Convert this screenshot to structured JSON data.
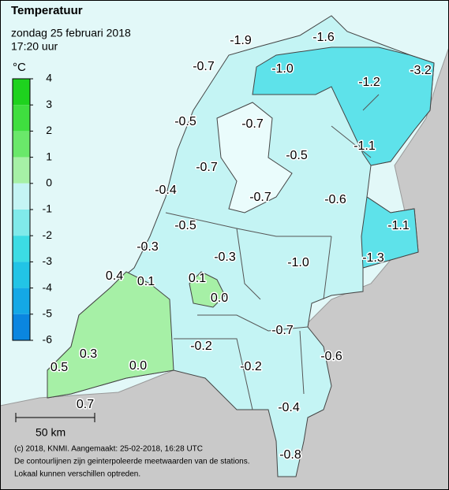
{
  "header": {
    "title": "Temperatuur",
    "date": "zondag 25 februari 2018",
    "time": "17:20 uur"
  },
  "legend": {
    "unit": "°C",
    "ticks": [
      4,
      3,
      2,
      1,
      0,
      -1,
      -2,
      -3,
      -4,
      -5,
      -6
    ],
    "colors": [
      "#1ed21e",
      "#3fde3f",
      "#6ae86a",
      "#a6f0a6",
      "#c4f4f4",
      "#80eaea",
      "#3cdce4",
      "#22c4e6",
      "#14a8e6",
      "#0a86e0"
    ]
  },
  "map": {
    "labels": [
      "-1.9",
      "-1.6",
      "-0.7",
      "-1.0",
      "-1.2",
      "-3.2",
      "-0.5",
      "-0.7",
      "-1.1",
      "-0.5",
      "-0.7",
      "-0.4",
      "-0.7",
      "-0.6",
      "-0.5",
      "-1.1",
      "-0.3",
      "-0.3",
      "-1.0",
      "-1.3",
      "0.4",
      "0.1",
      "0.1",
      "0.0",
      "-0.7",
      "-0.2",
      "-0.6",
      "0.3",
      "0.0",
      "-0.2",
      "0.5",
      "0.7",
      "-0.4",
      "-0.8"
    ]
  },
  "scale": "50 km",
  "footer": [
    "(c) 2018, KNMI. Aangemaakt: 25-02-2018, 16:28 UTC",
    "De contourlijnen zijn geinterpoleerde meetwaarden van de stations.",
    "Lokaal kunnen verschillen optreden."
  ]
}
